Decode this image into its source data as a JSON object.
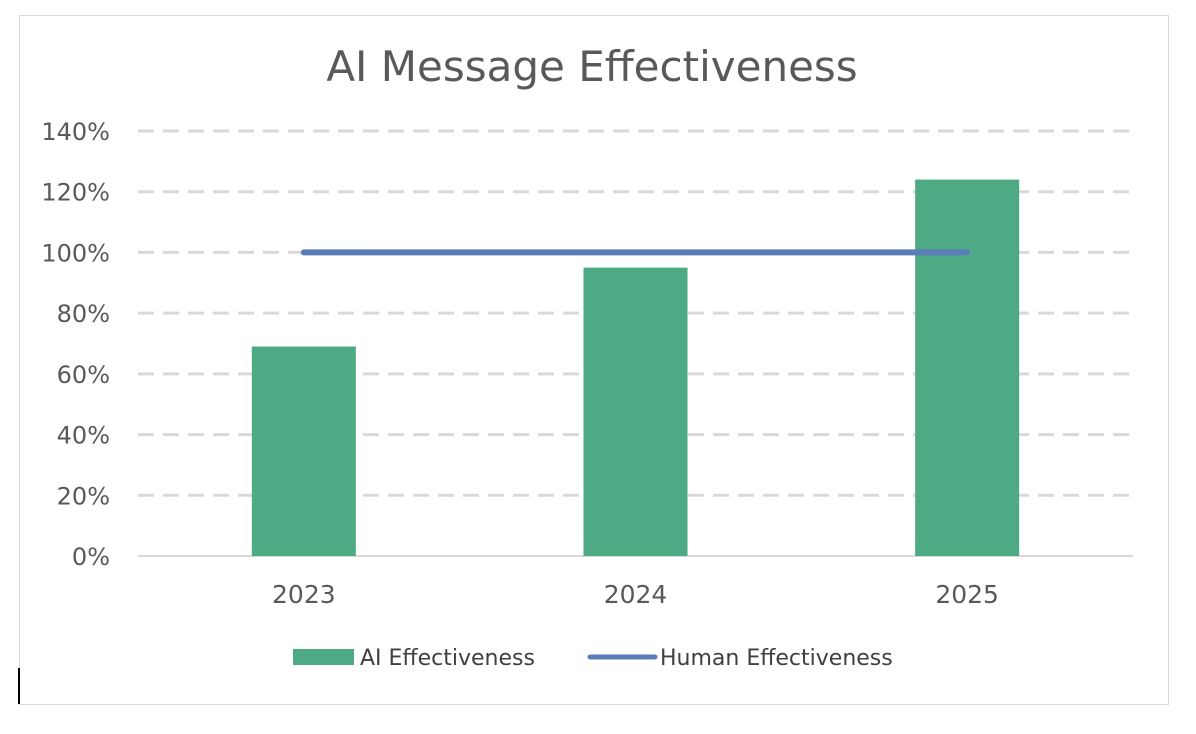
{
  "chart_data": {
    "type": "bar",
    "title": "AI Message Effectiveness",
    "categories": [
      "2023",
      "2024",
      "2025"
    ],
    "series": [
      {
        "name": "AI Effectiveness",
        "type": "bar",
        "values": [
          69,
          95,
          124
        ],
        "color": "#4ea985"
      },
      {
        "name": "Human Effectiveness",
        "type": "line",
        "values": [
          100,
          100,
          100
        ],
        "color": "#5a7db8"
      }
    ],
    "ylim": [
      0,
      140
    ],
    "yticks": [
      "0%",
      "20%",
      "40%",
      "60%",
      "80%",
      "100%",
      "120%",
      "140%"
    ],
    "xlabel": "",
    "ylabel": "",
    "grid": true,
    "legend": "bottom"
  }
}
